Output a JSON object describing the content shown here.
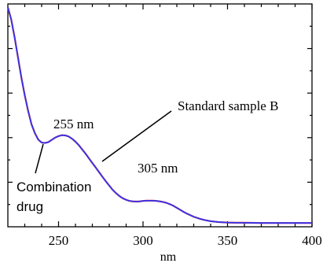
{
  "chart_data": {
    "type": "line",
    "xlabel": "nm",
    "ylabel": "",
    "xlim": [
      220,
      400
    ],
    "ylim": [
      0,
      1
    ],
    "y_ticks_labeled": false,
    "x_ticks": [
      250,
      300,
      350,
      400
    ],
    "x_tick_labels": [
      "250",
      "300",
      "350",
      "400"
    ],
    "series": [
      {
        "name": "Standard sample B",
        "color": "#3333ee",
        "x": [
          220,
          222,
          224,
          226,
          228,
          230,
          232,
          234,
          236,
          238,
          240,
          242,
          244,
          246,
          248,
          250,
          252,
          254,
          256,
          258,
          260,
          262,
          264,
          266,
          268,
          270,
          272,
          274,
          276,
          278,
          280,
          282,
          284,
          286,
          288,
          290,
          292,
          294,
          296,
          298,
          300,
          302,
          304,
          306,
          308,
          310,
          312,
          314,
          316,
          318,
          320,
          322,
          324,
          326,
          328,
          330,
          332,
          334,
          336,
          338,
          340,
          345,
          350,
          355,
          360,
          370,
          380,
          390,
          400
        ],
        "values": [
          0.985,
          0.93,
          0.85,
          0.76,
          0.67,
          0.59,
          0.52,
          0.46,
          0.42,
          0.391,
          0.378,
          0.376,
          0.38,
          0.39,
          0.4,
          0.407,
          0.411,
          0.41,
          0.405,
          0.395,
          0.382,
          0.366,
          0.347,
          0.328,
          0.307,
          0.286,
          0.266,
          0.245,
          0.224,
          0.204,
          0.185,
          0.166,
          0.151,
          0.138,
          0.128,
          0.121,
          0.116,
          0.114,
          0.113,
          0.114,
          0.116,
          0.117,
          0.117,
          0.117,
          0.116,
          0.114,
          0.111,
          0.107,
          0.101,
          0.094,
          0.085,
          0.076,
          0.067,
          0.059,
          0.052,
          0.045,
          0.04,
          0.035,
          0.031,
          0.028,
          0.025,
          0.021,
          0.019,
          0.018,
          0.018,
          0.017,
          0.017,
          0.017,
          0.017
        ]
      },
      {
        "name": "Combination drug",
        "color": "#dd3333",
        "x": [
          220,
          222,
          224,
          226,
          228,
          230,
          232,
          234,
          236,
          238,
          240,
          242,
          244,
          246,
          248,
          250,
          252,
          254,
          256,
          258,
          260,
          262,
          264,
          266,
          268,
          270,
          272,
          274,
          276,
          278,
          280,
          282,
          284,
          286,
          288,
          290,
          292,
          294,
          296,
          298,
          300,
          302,
          304,
          306,
          308,
          310,
          312,
          314,
          316,
          318,
          320,
          322,
          324,
          326,
          328,
          330,
          332,
          334,
          336,
          338,
          340,
          345,
          350,
          355,
          360,
          370,
          380,
          390,
          400
        ],
        "values": [
          0.985,
          0.93,
          0.85,
          0.76,
          0.67,
          0.59,
          0.52,
          0.46,
          0.42,
          0.391,
          0.378,
          0.376,
          0.38,
          0.39,
          0.4,
          0.407,
          0.411,
          0.41,
          0.405,
          0.395,
          0.382,
          0.366,
          0.347,
          0.328,
          0.307,
          0.286,
          0.266,
          0.245,
          0.224,
          0.204,
          0.185,
          0.166,
          0.151,
          0.138,
          0.128,
          0.121,
          0.116,
          0.114,
          0.113,
          0.114,
          0.116,
          0.117,
          0.117,
          0.117,
          0.116,
          0.114,
          0.111,
          0.107,
          0.101,
          0.094,
          0.085,
          0.076,
          0.067,
          0.059,
          0.052,
          0.045,
          0.04,
          0.035,
          0.031,
          0.028,
          0.025,
          0.021,
          0.019,
          0.018,
          0.018,
          0.017,
          0.017,
          0.017,
          0.017
        ]
      }
    ],
    "annotations": [
      {
        "text": "255 nm",
        "x": 255,
        "y": 0.411
      },
      {
        "text": "305 nm",
        "x": 305,
        "y": 0.117
      },
      {
        "text": "Standard sample B"
      },
      {
        "text": "Combination drug"
      }
    ],
    "grid": false
  },
  "labels": {
    "peak1": "255 nm",
    "peak2": "305 nm",
    "standard": "Standard sample B",
    "combo_line1": "Combination",
    "combo_line2": "drug",
    "xlabel": "nm"
  }
}
